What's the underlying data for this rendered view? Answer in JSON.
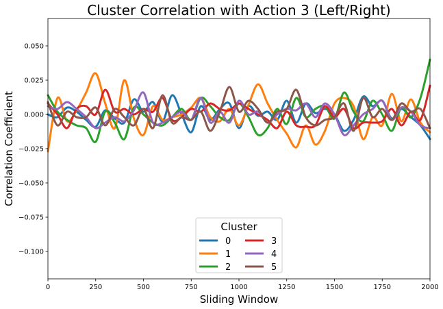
{
  "chart_data": {
    "type": "line",
    "title": "Cluster Correlation with Action 3 (Left/Right)",
    "xlabel": "Sliding Window",
    "ylabel": "Correlation Coefficient",
    "xlim": [
      0,
      2000
    ],
    "ylim": [
      -0.12,
      0.07
    ],
    "xticks": [
      0,
      250,
      500,
      750,
      1000,
      1250,
      1500,
      1750,
      2000
    ],
    "xtick_labels": [
      "0",
      "250",
      "500",
      "750",
      "1000",
      "1250",
      "1500",
      "1750",
      "2000"
    ],
    "yticks": [
      -0.1,
      -0.075,
      -0.05,
      -0.025,
      0.0,
      0.025,
      0.05
    ],
    "ytick_labels": [
      "−0.100",
      "−0.075",
      "−0.050",
      "−0.025",
      "0.000",
      "0.025",
      "0.050"
    ],
    "grid": false,
    "legend": {
      "title": "Cluster",
      "placement": "lower-center",
      "columns": 2
    },
    "series": [
      {
        "name": "0",
        "color": "#1f77b4",
        "x": [
          0,
          50,
          100,
          150,
          200,
          250,
          300,
          350,
          400,
          450,
          500,
          550,
          600,
          650,
          700,
          750,
          800,
          850,
          900,
          950,
          1000,
          1050,
          1100,
          1150,
          1200,
          1250,
          1300,
          1350,
          1400,
          1450,
          1500,
          1550,
          1600,
          1650,
          1700,
          1750,
          1800,
          1850,
          1900,
          1950,
          2000
        ],
        "values": [
          0.0,
          -0.002,
          0.005,
          0.002,
          -0.004,
          -0.009,
          0.003,
          -0.003,
          -0.006,
          0.011,
          0.002,
          0.009,
          -0.005,
          0.014,
          0.0,
          -0.013,
          0.006,
          -0.004,
          0.004,
          0.008,
          -0.01,
          0.006,
          -0.001,
          0.002,
          -0.004,
          0.01,
          -0.006,
          0.008,
          0.001,
          0.004,
          0.0,
          -0.012,
          -0.004,
          0.013,
          0.006,
          0.01,
          -0.003,
          0.004,
          -0.002,
          -0.008,
          -0.018
        ]
      },
      {
        "name": "1",
        "color": "#ff7f0e",
        "x": [
          0,
          50,
          100,
          150,
          200,
          250,
          300,
          350,
          400,
          450,
          500,
          550,
          600,
          650,
          700,
          750,
          800,
          850,
          900,
          950,
          1000,
          1050,
          1100,
          1150,
          1200,
          1250,
          1300,
          1350,
          1400,
          1450,
          1500,
          1550,
          1600,
          1650,
          1700,
          1750,
          1800,
          1850,
          1900,
          1950,
          2000
        ],
        "values": [
          -0.027,
          0.012,
          -0.005,
          0.003,
          0.016,
          0.03,
          0.008,
          -0.01,
          0.025,
          -0.003,
          -0.015,
          0.006,
          -0.004,
          -0.002,
          0.0,
          0.005,
          0.012,
          -0.002,
          -0.005,
          0.004,
          -0.008,
          0.007,
          0.022,
          0.008,
          -0.004,
          -0.014,
          -0.024,
          -0.008,
          -0.022,
          -0.012,
          0.008,
          0.012,
          0.006,
          -0.018,
          -0.002,
          -0.008,
          0.015,
          -0.005,
          0.011,
          -0.006,
          -0.013
        ]
      },
      {
        "name": "2",
        "color": "#2ca02c",
        "x": [
          0,
          50,
          100,
          150,
          200,
          250,
          300,
          350,
          400,
          450,
          500,
          550,
          600,
          650,
          700,
          750,
          800,
          850,
          900,
          950,
          1000,
          1050,
          1100,
          1150,
          1200,
          1250,
          1300,
          1350,
          1400,
          1450,
          1500,
          1550,
          1600,
          1650,
          1700,
          1750,
          1800,
          1850,
          1900,
          1950,
          2000
        ],
        "values": [
          0.014,
          0.002,
          -0.004,
          -0.008,
          -0.01,
          -0.02,
          0.002,
          -0.006,
          -0.018,
          0.005,
          0.0,
          -0.006,
          -0.008,
          -0.002,
          0.004,
          -0.004,
          0.012,
          0.006,
          -0.002,
          -0.004,
          0.008,
          -0.002,
          -0.015,
          -0.01,
          0.004,
          -0.007,
          0.012,
          -0.002,
          0.004,
          0.006,
          -0.003,
          0.016,
          0.002,
          -0.005,
          0.01,
          0.0,
          -0.012,
          0.005,
          -0.002,
          0.012,
          0.04
        ]
      },
      {
        "name": "3",
        "color": "#d62728",
        "x": [
          0,
          50,
          100,
          150,
          200,
          250,
          300,
          350,
          400,
          450,
          500,
          550,
          600,
          650,
          700,
          750,
          800,
          850,
          900,
          950,
          1000,
          1050,
          1100,
          1150,
          1200,
          1250,
          1300,
          1350,
          1400,
          1450,
          1500,
          1550,
          1600,
          1650,
          1700,
          1750,
          1800,
          1850,
          1900,
          1950,
          2000
        ],
        "values": [
          0.008,
          0.0,
          -0.01,
          0.004,
          0.006,
          0.0,
          0.018,
          0.002,
          0.004,
          0.0,
          0.004,
          0.002,
          0.012,
          -0.004,
          -0.002,
          0.004,
          0.002,
          0.008,
          0.004,
          0.003,
          0.008,
          0.004,
          0.0,
          -0.004,
          -0.01,
          0.002,
          -0.008,
          -0.009,
          -0.008,
          0.006,
          -0.002,
          0.004,
          -0.01,
          -0.006,
          -0.006,
          -0.005,
          0.004,
          -0.008,
          0.002,
          -0.004,
          0.021
        ]
      },
      {
        "name": "4",
        "color": "#9467bd",
        "x": [
          0,
          50,
          100,
          150,
          200,
          250,
          300,
          350,
          400,
          450,
          500,
          550,
          600,
          650,
          700,
          750,
          800,
          850,
          900,
          950,
          1000,
          1050,
          1100,
          1150,
          1200,
          1250,
          1300,
          1350,
          1400,
          1450,
          1500,
          1550,
          1600,
          1650,
          1700,
          1750,
          1800,
          1850,
          1900,
          1950,
          2000
        ],
        "values": [
          0.006,
          0.004,
          0.009,
          0.004,
          -0.002,
          -0.01,
          -0.006,
          -0.002,
          -0.005,
          0.003,
          0.016,
          -0.006,
          -0.006,
          -0.002,
          0.002,
          -0.004,
          0.012,
          -0.006,
          0.002,
          -0.006,
          0.01,
          0.0,
          0.002,
          -0.006,
          0.0,
          0.004,
          0.003,
          0.008,
          -0.002,
          0.008,
          0.0,
          -0.015,
          -0.008,
          0.0,
          0.004,
          0.01,
          -0.004,
          0.005,
          0.002,
          -0.008,
          -0.01
        ]
      },
      {
        "name": "5",
        "color": "#8c564b",
        "x": [
          0,
          50,
          100,
          150,
          200,
          250,
          300,
          350,
          400,
          450,
          500,
          550,
          600,
          650,
          700,
          750,
          800,
          850,
          900,
          950,
          1000,
          1050,
          1100,
          1150,
          1200,
          1250,
          1300,
          1350,
          1400,
          1450,
          1500,
          1550,
          1600,
          1650,
          1700,
          1750,
          1800,
          1850,
          1900,
          1950,
          2000
        ],
        "values": [
          0.009,
          -0.008,
          0.002,
          -0.002,
          -0.002,
          0.005,
          -0.008,
          0.004,
          -0.002,
          -0.008,
          0.004,
          -0.01,
          0.014,
          -0.006,
          -0.002,
          -0.004,
          0.002,
          -0.012,
          0.002,
          0.02,
          0.002,
          0.01,
          0.004,
          -0.006,
          0.002,
          0.004,
          0.018,
          -0.002,
          -0.008,
          -0.004,
          -0.002,
          0.008,
          -0.012,
          0.012,
          -0.002,
          0.004,
          -0.004,
          0.008,
          0.002,
          0.004,
          -0.01
        ]
      }
    ]
  }
}
